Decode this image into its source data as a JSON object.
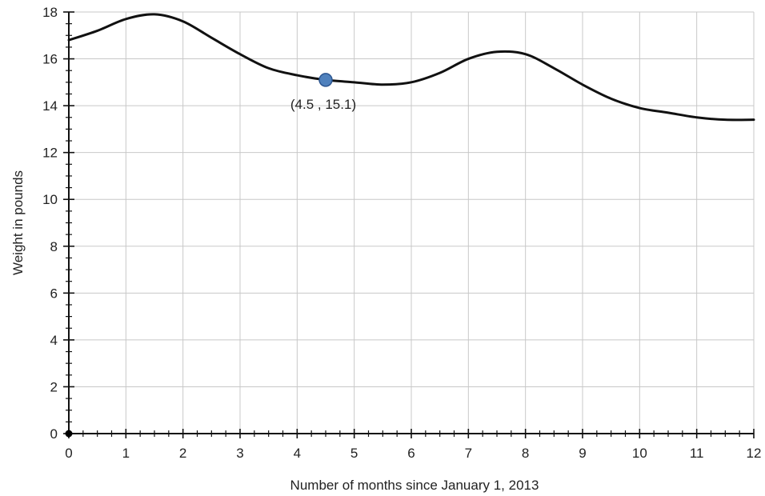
{
  "chart_data": {
    "type": "line",
    "title": "",
    "xlabel": "Number of months since January 1, 2013",
    "ylabel": "Weight in pounds",
    "xlim": [
      0,
      12
    ],
    "ylim": [
      0,
      18
    ],
    "x_ticks": [
      "0",
      "1",
      "2",
      "3",
      "4",
      "5",
      "6",
      "7",
      "8",
      "9",
      "10",
      "11",
      "12"
    ],
    "y_ticks": [
      "0",
      "2",
      "4",
      "6",
      "8",
      "10",
      "12",
      "14",
      "16",
      "18"
    ],
    "grid": true,
    "series": [
      {
        "x": [
          0,
          0.5,
          1,
          1.5,
          2,
          2.5,
          3,
          3.5,
          4,
          4.5,
          5,
          5.5,
          6,
          6.5,
          7,
          7.5,
          8,
          8.5,
          9,
          9.5,
          10,
          10.5,
          11,
          11.5,
          12
        ],
        "y": [
          16.8,
          17.2,
          17.7,
          17.9,
          17.6,
          16.9,
          16.2,
          15.6,
          15.3,
          15.1,
          15.0,
          14.9,
          15.0,
          15.4,
          16.0,
          16.3,
          16.2,
          15.6,
          14.9,
          14.3,
          13.9,
          13.7,
          13.5,
          13.4,
          13.4
        ]
      }
    ],
    "highlight_point": {
      "x": 4.5,
      "y": 15.1,
      "label": "(4.5 , 15.1)"
    },
    "origin_point": {
      "x": 0,
      "y": 0
    },
    "colors": {
      "line": "#111111",
      "grid": "#c8c8c8",
      "point": "#4f81bd",
      "point_stroke": "#2b5590"
    }
  }
}
